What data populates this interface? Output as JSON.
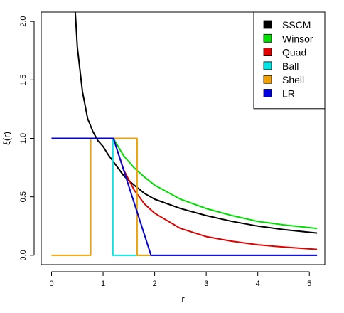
{
  "chart_data": {
    "type": "line",
    "xlabel": "r",
    "ylabel": "ξ(r)",
    "xlim": [
      -0.2,
      5.3
    ],
    "ylim": [
      -0.08,
      2.08
    ],
    "xticks": [
      0,
      1,
      2,
      3,
      4,
      5
    ],
    "yticks": [
      0.0,
      0.5,
      1.0,
      1.5,
      2.0
    ],
    "ytick_labels": [
      "0.0",
      "0.5",
      "1.0",
      "1.5",
      "2.0"
    ],
    "xtick_labels": [
      "0",
      "1",
      "2",
      "3",
      "4",
      "5"
    ],
    "grid": false,
    "legend_position": "top-right",
    "series": [
      {
        "name": "SSCM",
        "color": "#000000",
        "points": [
          [
            0.46,
            2.08
          ],
          [
            0.5,
            1.78
          ],
          [
            0.6,
            1.4
          ],
          [
            0.7,
            1.17
          ],
          [
            0.8,
            1.06
          ],
          [
            0.9,
            0.98
          ],
          [
            1.0,
            0.93
          ],
          [
            1.1,
            0.86
          ],
          [
            1.2,
            0.8
          ],
          [
            1.4,
            0.68
          ],
          [
            1.6,
            0.6
          ],
          [
            1.8,
            0.53
          ],
          [
            2.0,
            0.48
          ],
          [
            2.5,
            0.4
          ],
          [
            3.0,
            0.34
          ],
          [
            3.5,
            0.29
          ],
          [
            4.0,
            0.25
          ],
          [
            4.5,
            0.22
          ],
          [
            5.15,
            0.19
          ]
        ]
      },
      {
        "name": "Winsor",
        "color": "#00e000",
        "points": [
          [
            0.0,
            1.0
          ],
          [
            1.2,
            1.0
          ],
          [
            1.4,
            0.85
          ],
          [
            1.6,
            0.75
          ],
          [
            1.8,
            0.67
          ],
          [
            2.0,
            0.6
          ],
          [
            2.5,
            0.48
          ],
          [
            3.0,
            0.4
          ],
          [
            3.5,
            0.34
          ],
          [
            4.0,
            0.29
          ],
          [
            4.5,
            0.26
          ],
          [
            5.15,
            0.23
          ]
        ]
      },
      {
        "name": "Quad",
        "color": "#e00000",
        "points": [
          [
            0.0,
            1.0
          ],
          [
            1.2,
            1.0
          ],
          [
            1.4,
            0.73
          ],
          [
            1.6,
            0.56
          ],
          [
            1.8,
            0.44
          ],
          [
            2.0,
            0.36
          ],
          [
            2.5,
            0.23
          ],
          [
            3.0,
            0.16
          ],
          [
            3.5,
            0.12
          ],
          [
            4.0,
            0.09
          ],
          [
            4.5,
            0.07
          ],
          [
            5.15,
            0.05
          ]
        ]
      },
      {
        "name": "Ball",
        "color": "#00e5e5",
        "points": [
          [
            0.0,
            1.0
          ],
          [
            1.19,
            1.0
          ],
          [
            1.19,
            0.0
          ],
          [
            5.15,
            0.0
          ]
        ]
      },
      {
        "name": "Shell",
        "color": "#f0a000",
        "points": [
          [
            0.0,
            0.0
          ],
          [
            0.76,
            0.0
          ],
          [
            0.76,
            1.0
          ],
          [
            1.66,
            1.0
          ],
          [
            1.66,
            0.0
          ],
          [
            5.15,
            0.0
          ]
        ]
      },
      {
        "name": "LR",
        "color": "#0000e0",
        "points": [
          [
            0.0,
            1.0
          ],
          [
            1.2,
            1.0
          ],
          [
            1.93,
            0.0
          ],
          [
            5.15,
            0.0
          ]
        ]
      }
    ]
  }
}
